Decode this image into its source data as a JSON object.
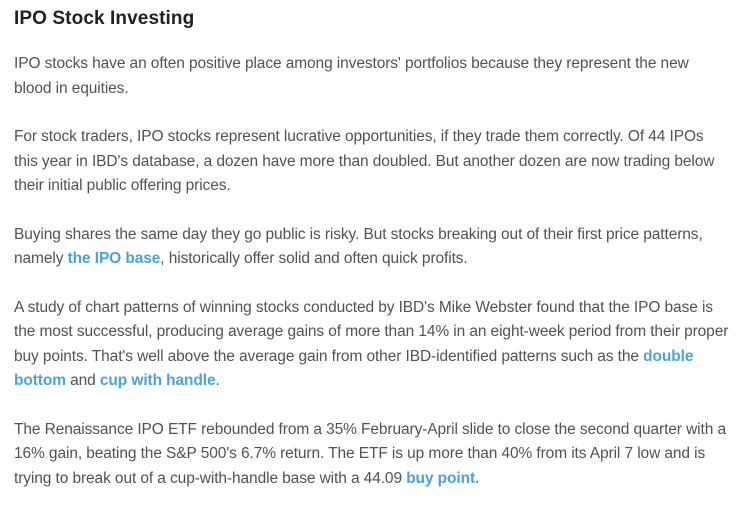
{
  "theme": {
    "background": "#ffffff",
    "heading_color": "#212121",
    "text_color": "#4f5257",
    "link_color": "#4aa3dc"
  },
  "article": {
    "heading": "IPO Stock Investing",
    "paragraphs": [
      {
        "runs": [
          {
            "t": "IPO stocks have an often positive place among investors' portfolios because they represent the new blood in equities."
          }
        ]
      },
      {
        "runs": [
          {
            "t": "For stock traders, IPO stocks represent lucrative opportunities, if they trade them correctly. Of 44 IPOs this year in IBD's database, a dozen have more than doubled. But another dozen are now trading below their initial public offering prices."
          }
        ]
      },
      {
        "runs": [
          {
            "t": "Buying shares the same day they go public is risky. But stocks breaking out of their first price patterns, namely "
          },
          {
            "t": "the IPO base",
            "link": true
          },
          {
            "t": ", historically offer solid and often quick profits."
          }
        ]
      },
      {
        "runs": [
          {
            "t": "A study of chart patterns of winning stocks conducted by IBD's Mike Webster found that the IPO base is the most successful, producing average gains of more than 14% in an eight-week period from their proper buy points. That's well above the average gain from other IBD-identified patterns such as the "
          },
          {
            "t": "double bottom",
            "link": true
          },
          {
            "t": " and "
          },
          {
            "t": "cup with handle",
            "link": true
          },
          {
            "t": "."
          }
        ]
      },
      {
        "runs": [
          {
            "t": "The Renaissance IPO ETF rebounded from a 35% February-April slide to close the second quarter with a 16% gain, beating the S&P 500's 6.7% return. The ETF is up more than 40% from its April 7 low and is trying to break out of a cup-with-handle base with a 44.09 "
          },
          {
            "t": "buy point",
            "link": true
          },
          {
            "t": "."
          }
        ]
      }
    ]
  }
}
